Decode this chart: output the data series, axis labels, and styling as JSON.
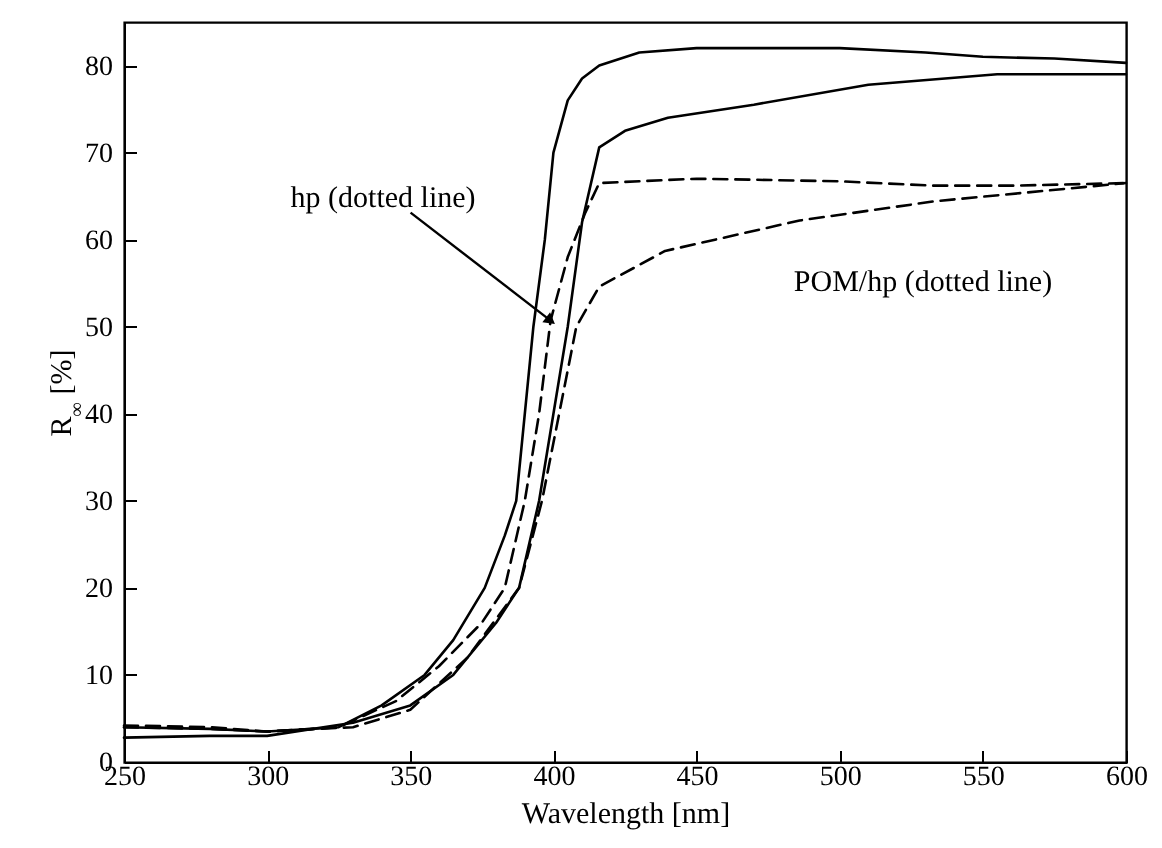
{
  "chart_data": {
    "type": "line",
    "xlabel": "Wavelength [nm]",
    "ylabel": "R$_{∞}$ [%]",
    "xlim": [
      250,
      600
    ],
    "xticks": [
      250,
      300,
      350,
      400,
      450,
      500,
      550,
      600
    ],
    "ylim": [
      0,
      85
    ],
    "yticks": [
      0,
      10,
      20,
      30,
      40,
      50,
      60,
      70,
      80
    ],
    "marker": "none",
    "series": [
      {
        "color": "#000000",
        "line_style": "solid",
        "x": [
          250,
          280,
          300,
          325,
          340,
          355,
          365,
          376,
          383,
          387,
          390,
          393,
          397,
          400,
          405,
          410,
          416,
          430,
          450,
          480,
          500,
          530,
          550,
          575,
          600
        ],
        "values": [
          4.0,
          3.8,
          3.5,
          4.0,
          6.5,
          10,
          14,
          20,
          26,
          30,
          40,
          50,
          60,
          70,
          76,
          78.5,
          80,
          81.5,
          82,
          82,
          82,
          81.5,
          81,
          80.8,
          80.3
        ]
      },
      {
        "color": "#000000",
        "line_style": "solid",
        "x": [
          250,
          280,
          300,
          330,
          350,
          365,
          380,
          388,
          395,
          400,
          405,
          410,
          416,
          425,
          440,
          470,
          510,
          555,
          600
        ],
        "values": [
          2.8,
          3.0,
          3.0,
          4.5,
          6.5,
          10,
          16,
          20,
          30,
          40,
          50,
          62,
          70.6,
          72.5,
          74,
          75.5,
          77.8,
          79,
          79
        ]
      },
      {
        "color": "#000000",
        "line_style": "dashed",
        "x": [
          250,
          280,
          300,
          325,
          345,
          360,
          375,
          383,
          390,
          395,
          399,
          405,
          411,
          416,
          450,
          500,
          533,
          560,
          600
        ],
        "values": [
          4.2,
          4.0,
          3.5,
          4.0,
          7,
          11,
          16,
          20,
          30,
          40,
          50.7,
          58,
          63,
          66.5,
          67,
          66.7,
          66.2,
          66.2,
          66.5
        ]
      },
      {
        "color": "#000000",
        "line_style": "dashed",
        "x": [
          250,
          280,
          300,
          330,
          350,
          370,
          388,
          396,
          402,
          408,
          416,
          439,
          486,
          533,
          600
        ],
        "values": [
          4.0,
          3.8,
          3.5,
          4.0,
          6,
          12,
          20,
          30,
          40,
          50,
          54.6,
          58.7,
          62.2,
          64.4,
          66.5
        ]
      }
    ],
    "annotations": [
      {
        "text": "hp (dotted line)",
        "x": 399,
        "y": 50.7
      },
      {
        "text": "POM/hp (dotted line)",
        "x": 470,
        "y": 61
      }
    ]
  }
}
